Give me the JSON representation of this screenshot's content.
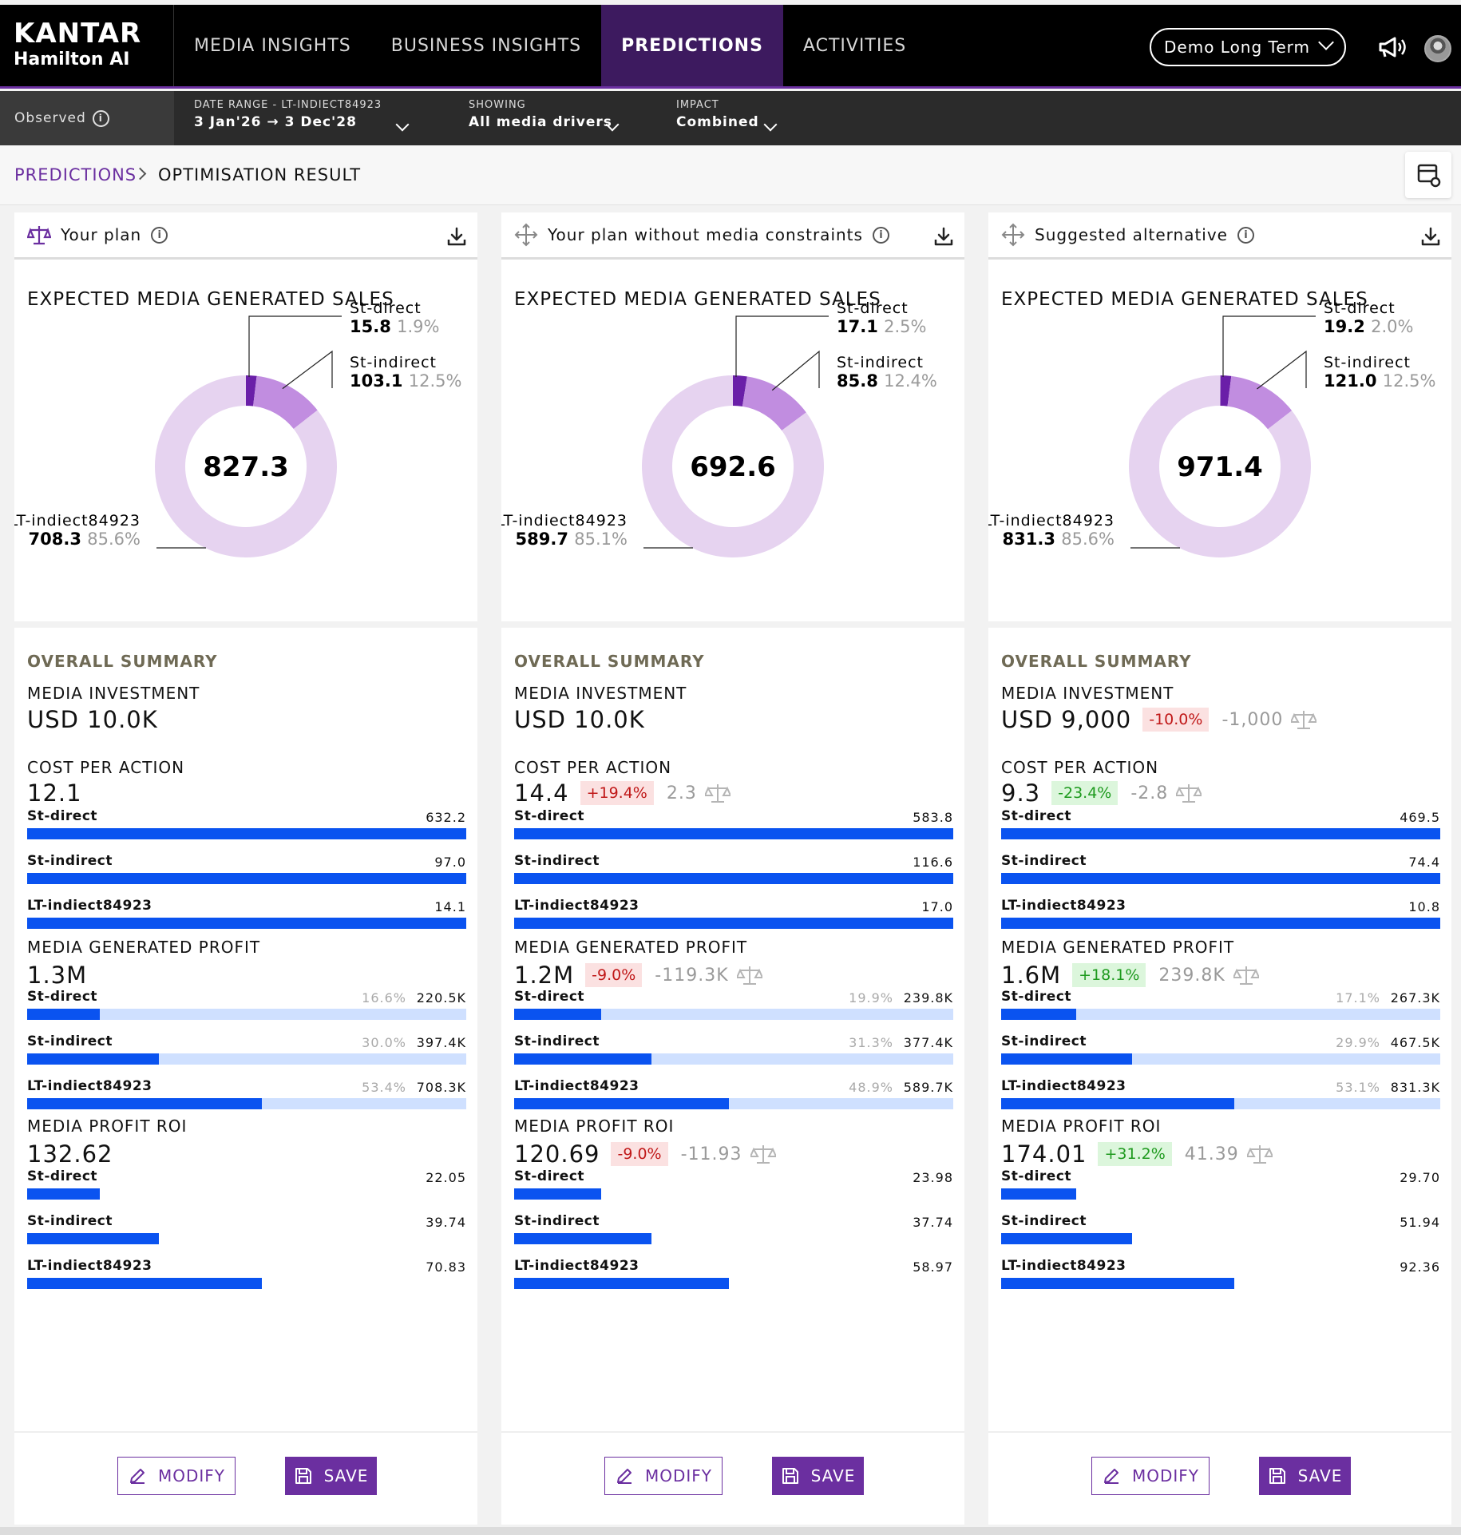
{
  "brand": {
    "name": "KANTAR",
    "product": "Hamilton AI"
  },
  "nav": [
    {
      "label": "MEDIA INSIGHTS",
      "active": false
    },
    {
      "label": "BUSINESS INSIGHTS",
      "active": false
    },
    {
      "label": "PREDICTIONS",
      "active": true
    },
    {
      "label": "ACTIVITIES",
      "active": false
    }
  ],
  "profile": {
    "label": "Demo Long Term"
  },
  "filters": {
    "observed": "Observed",
    "date_range": {
      "label": "DATE RANGE - LT-INDIECT84923",
      "value": "3 Jan'26 → 3 Dec'28"
    },
    "showing": {
      "label": "SHOWING",
      "value": "All media drivers"
    },
    "impact": {
      "label": "IMPACT",
      "value": "Combined"
    }
  },
  "breadcrumb": {
    "parent": "PREDICTIONS",
    "current": "OPTIMISATION RESULT"
  },
  "colors": {
    "brand": "#6b2fa0",
    "bar": "#0a53f0",
    "bar_track": "#cfe0ff",
    "donut_lt": "#e6d3f0",
    "donut_st_indirect": "#c18de0",
    "donut_st_direct": "#6a1fa8"
  },
  "plans": [
    {
      "title": "Your plan",
      "icon": "scale-icon",
      "section_title": "EXPECTED MEDIA GENERATED SALES",
      "total": "827.3",
      "segments": [
        {
          "name": "St-direct",
          "value": "15.8",
          "pct": "1.9%",
          "share": 1.9
        },
        {
          "name": "St-indirect",
          "value": "103.1",
          "pct": "12.5%",
          "share": 12.5
        },
        {
          "name": "LT-indiect84923",
          "value": "708.3",
          "pct": "85.6%",
          "share": 85.6
        }
      ],
      "summary": {
        "heading": "OVERALL SUMMARY",
        "investment": {
          "title": "MEDIA INVESTMENT",
          "value": "USD 10.0K",
          "badge": "",
          "badge_type": "",
          "delta": ""
        },
        "cpa": {
          "title": "COST PER ACTION",
          "value": "12.1",
          "badge": "",
          "badge_type": "",
          "delta": "",
          "rows": [
            {
              "label": "St-direct",
              "value": "632.2",
              "fill": 1.0
            },
            {
              "label": "St-indirect",
              "value": "97.0",
              "fill": 1.0
            },
            {
              "label": "LT-indiect84923",
              "value": "14.1",
              "fill": 1.0
            }
          ]
        },
        "profit": {
          "title": "MEDIA GENERATED PROFIT",
          "value": "1.3M",
          "badge": "",
          "badge_type": "",
          "delta": "",
          "rows": [
            {
              "label": "St-direct",
              "pct": "16.6%",
              "value": "220.5K",
              "fill": 0.166
            },
            {
              "label": "St-indirect",
              "pct": "30.0%",
              "value": "397.4K",
              "fill": 0.3
            },
            {
              "label": "LT-indiect84923",
              "pct": "53.4%",
              "value": "708.3K",
              "fill": 0.534
            }
          ]
        },
        "roi": {
          "title": "MEDIA PROFIT ROI",
          "value": "132.62",
          "badge": "",
          "badge_type": "",
          "delta": "",
          "rows": [
            {
              "label": "St-direct",
              "value": "22.05",
              "fill": 0.166
            },
            {
              "label": "St-indirect",
              "value": "39.74",
              "fill": 0.3
            },
            {
              "label": "LT-indiect84923",
              "value": "70.83",
              "fill": 0.534
            }
          ]
        }
      },
      "actions": {
        "modify": "MODIFY",
        "save": "SAVE"
      }
    },
    {
      "title": "Your plan without media constraints",
      "icon": "move-icon",
      "section_title": "EXPECTED MEDIA GENERATED SALES",
      "total": "692.6",
      "segments": [
        {
          "name": "St-direct",
          "value": "17.1",
          "pct": "2.5%",
          "share": 2.5
        },
        {
          "name": "St-indirect",
          "value": "85.8",
          "pct": "12.4%",
          "share": 12.4
        },
        {
          "name": "LT-indiect84923",
          "value": "589.7",
          "pct": "85.1%",
          "share": 85.1
        }
      ],
      "summary": {
        "heading": "OVERALL SUMMARY",
        "investment": {
          "title": "MEDIA INVESTMENT",
          "value": "USD 10.0K",
          "badge": "",
          "badge_type": "",
          "delta": ""
        },
        "cpa": {
          "title": "COST PER ACTION",
          "value": "14.4",
          "badge": "+19.4%",
          "badge_type": "neg",
          "delta": "2.3",
          "rows": [
            {
              "label": "St-direct",
              "value": "583.8",
              "fill": 1.0
            },
            {
              "label": "St-indirect",
              "value": "116.6",
              "fill": 1.0
            },
            {
              "label": "LT-indiect84923",
              "value": "17.0",
              "fill": 1.0
            }
          ]
        },
        "profit": {
          "title": "MEDIA GENERATED PROFIT",
          "value": "1.2M",
          "badge": "-9.0%",
          "badge_type": "neg",
          "delta": "-119.3K",
          "rows": [
            {
              "label": "St-direct",
              "pct": "19.9%",
              "value": "239.8K",
              "fill": 0.199
            },
            {
              "label": "St-indirect",
              "pct": "31.3%",
              "value": "377.4K",
              "fill": 0.313
            },
            {
              "label": "LT-indiect84923",
              "pct": "48.9%",
              "value": "589.7K",
              "fill": 0.489
            }
          ]
        },
        "roi": {
          "title": "MEDIA PROFIT ROI",
          "value": "120.69",
          "badge": "-9.0%",
          "badge_type": "neg",
          "delta": "-11.93",
          "rows": [
            {
              "label": "St-direct",
              "value": "23.98",
              "fill": 0.199
            },
            {
              "label": "St-indirect",
              "value": "37.74",
              "fill": 0.313
            },
            {
              "label": "LT-indiect84923",
              "value": "58.97",
              "fill": 0.489
            }
          ]
        }
      },
      "actions": {
        "modify": "MODIFY",
        "save": "SAVE"
      }
    },
    {
      "title": "Suggested alternative",
      "icon": "move-icon",
      "section_title": "EXPECTED MEDIA GENERATED SALES",
      "total": "971.4",
      "segments": [
        {
          "name": "St-direct",
          "value": "19.2",
          "pct": "2.0%",
          "share": 2.0
        },
        {
          "name": "St-indirect",
          "value": "121.0",
          "pct": "12.5%",
          "share": 12.5
        },
        {
          "name": "LT-indiect84923",
          "value": "831.3",
          "pct": "85.6%",
          "share": 85.6
        }
      ],
      "summary": {
        "heading": "OVERALL SUMMARY",
        "investment": {
          "title": "MEDIA INVESTMENT",
          "value": "USD 9,000",
          "badge": "-10.0%",
          "badge_type": "neg",
          "delta": "-1,000"
        },
        "cpa": {
          "title": "COST PER ACTION",
          "value": "9.3",
          "badge": "-23.4%",
          "badge_type": "pos",
          "delta": "-2.8",
          "rows": [
            {
              "label": "St-direct",
              "value": "469.5",
              "fill": 1.0
            },
            {
              "label": "St-indirect",
              "value": "74.4",
              "fill": 1.0
            },
            {
              "label": "LT-indiect84923",
              "value": "10.8",
              "fill": 1.0
            }
          ]
        },
        "profit": {
          "title": "MEDIA GENERATED PROFIT",
          "value": "1.6M",
          "badge": "+18.1%",
          "badge_type": "pos",
          "delta": "239.8K",
          "rows": [
            {
              "label": "St-direct",
              "pct": "17.1%",
              "value": "267.3K",
              "fill": 0.171
            },
            {
              "label": "St-indirect",
              "pct": "29.9%",
              "value": "467.5K",
              "fill": 0.299
            },
            {
              "label": "LT-indiect84923",
              "pct": "53.1%",
              "value": "831.3K",
              "fill": 0.531
            }
          ]
        },
        "roi": {
          "title": "MEDIA PROFIT ROI",
          "value": "174.01",
          "badge": "+31.2%",
          "badge_type": "pos",
          "delta": "41.39",
          "rows": [
            {
              "label": "St-direct",
              "value": "29.70",
              "fill": 0.171
            },
            {
              "label": "St-indirect",
              "value": "51.94",
              "fill": 0.299
            },
            {
              "label": "LT-indiect84923",
              "value": "92.36",
              "fill": 0.531
            }
          ]
        }
      },
      "actions": {
        "modify": "MODIFY",
        "save": "SAVE"
      }
    }
  ]
}
